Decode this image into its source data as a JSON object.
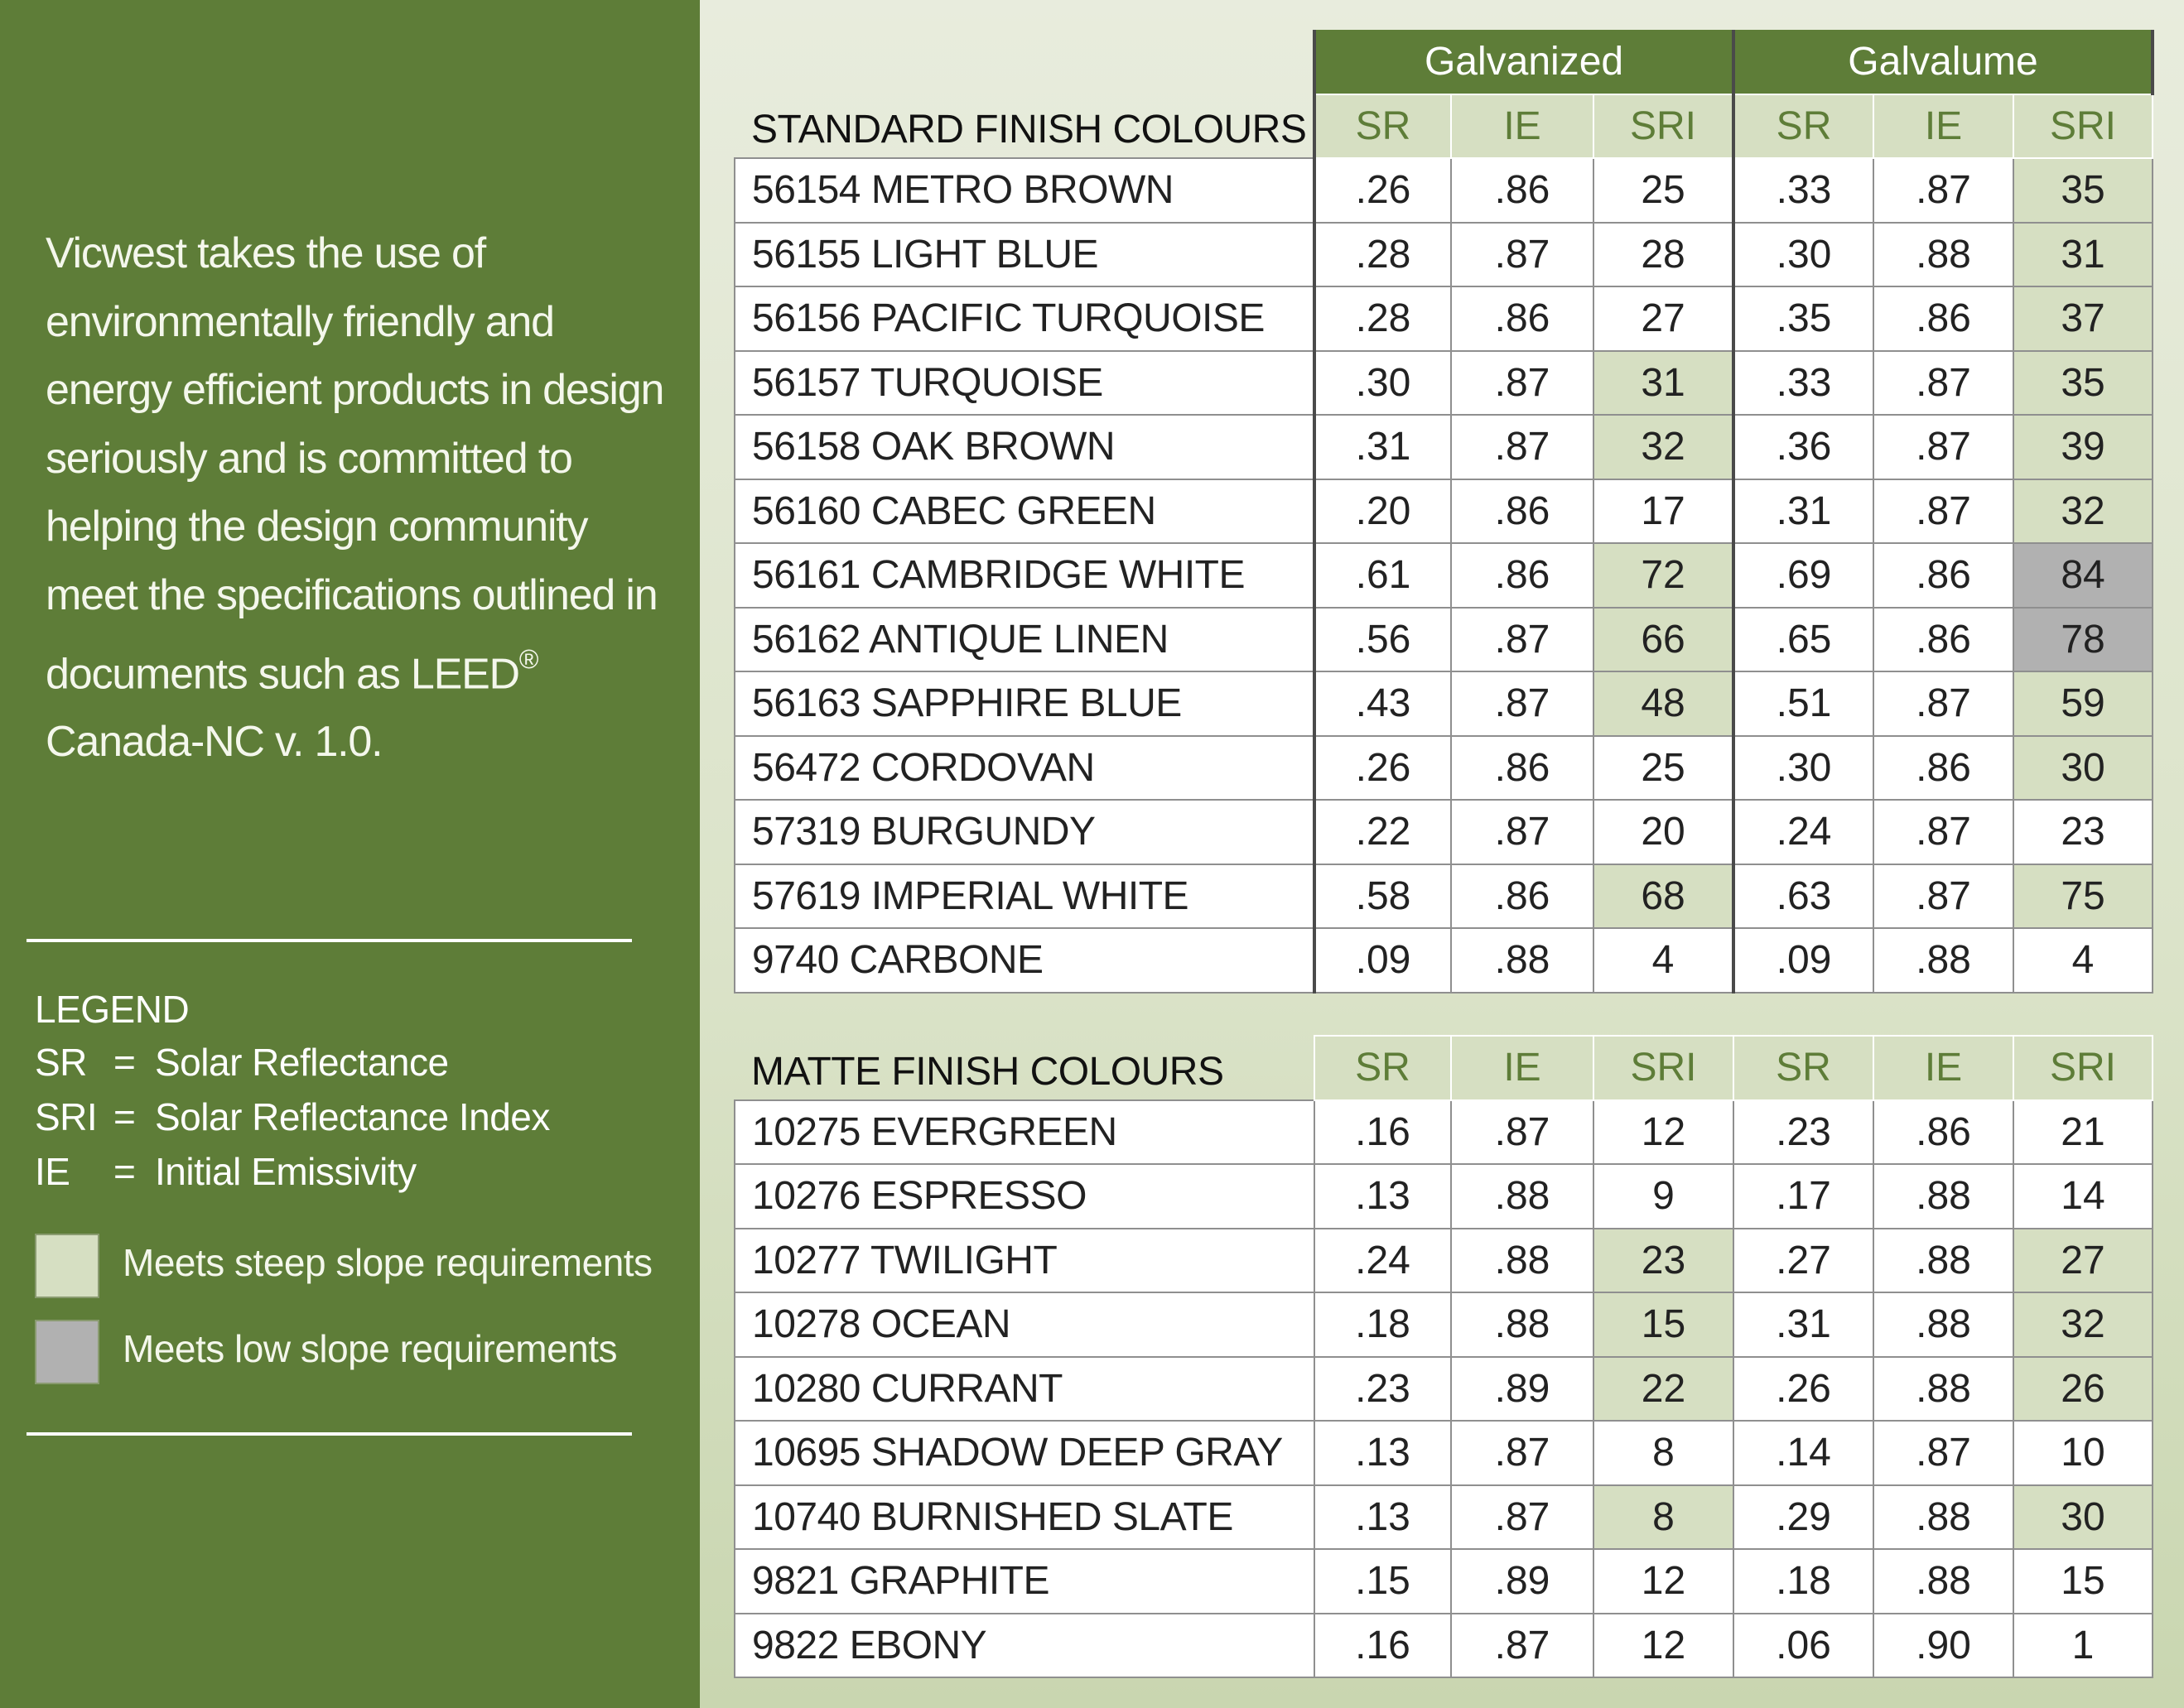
{
  "intro": {
    "text_main": "Vicwest takes the use of environmentally friendly and energy efficient products in design seriously and is committed to helping the design community meet the specifications outlined in documents such as LEED",
    "trademark": "®",
    "text_tail": "Canada-NC v. 1.0."
  },
  "legend": {
    "title": "LEGEND",
    "items": [
      {
        "abbr": "SR",
        "eq": "=",
        "desc": "Solar Reflectance"
      },
      {
        "abbr": "SRI",
        "eq": "=",
        "desc": "Solar Reflectance Index"
      },
      {
        "abbr": "IE",
        "eq": "=",
        "desc": "Initial Emissivity"
      }
    ],
    "swatches": [
      {
        "label": "Meets steep slope requirements",
        "color": "#d6dfc2"
      },
      {
        "label": "Meets low slope requirements",
        "color": "#b1b1b1"
      }
    ]
  },
  "colors": {
    "green": "#5e7d38",
    "steep": "#d6dfc2",
    "low": "#b1b1b1"
  },
  "groups": [
    "Galvanized",
    "Galvalume"
  ],
  "cols": [
    "SR",
    "IE",
    "SRI",
    "SR",
    "IE",
    "SRI"
  ],
  "standard": {
    "title": "STANDARD FINISH COLOURS",
    "rows": [
      {
        "name": "56154 METRO BROWN",
        "v": [
          ".26",
          ".86",
          "25",
          ".33",
          ".87",
          "35"
        ],
        "h": [
          "",
          "",
          "",
          "",
          "",
          "steep"
        ]
      },
      {
        "name": "56155 LIGHT BLUE",
        "v": [
          ".28",
          ".87",
          "28",
          ".30",
          ".88",
          "31"
        ],
        "h": [
          "",
          "",
          "",
          "",
          "",
          "steep"
        ]
      },
      {
        "name": "56156 PACIFIC TURQUOISE",
        "v": [
          ".28",
          ".86",
          "27",
          ".35",
          ".86",
          "37"
        ],
        "h": [
          "",
          "",
          "",
          "",
          "",
          "steep"
        ]
      },
      {
        "name": "56157 TURQUOISE",
        "v": [
          ".30",
          ".87",
          "31",
          ".33",
          ".87",
          "35"
        ],
        "h": [
          "",
          "",
          "steep",
          "",
          "",
          "steep"
        ]
      },
      {
        "name": "56158 OAK BROWN",
        "v": [
          ".31",
          ".87",
          "32",
          ".36",
          ".87",
          "39"
        ],
        "h": [
          "",
          "",
          "steep",
          "",
          "",
          "steep"
        ]
      },
      {
        "name": "56160 CABEC GREEN",
        "v": [
          ".20",
          ".86",
          "17",
          ".31",
          ".87",
          "32"
        ],
        "h": [
          "",
          "",
          "",
          "",
          "",
          "steep"
        ]
      },
      {
        "name": "56161 CAMBRIDGE WHITE",
        "v": [
          ".61",
          ".86",
          "72",
          ".69",
          ".86",
          "84"
        ],
        "h": [
          "",
          "",
          "steep",
          "",
          "",
          "low"
        ]
      },
      {
        "name": "56162 ANTIQUE LINEN",
        "v": [
          ".56",
          ".87",
          "66",
          ".65",
          ".86",
          "78"
        ],
        "h": [
          "",
          "",
          "steep",
          "",
          "",
          "low"
        ]
      },
      {
        "name": "56163 SAPPHIRE BLUE",
        "v": [
          ".43",
          ".87",
          "48",
          ".51",
          ".87",
          "59"
        ],
        "h": [
          "",
          "",
          "steep",
          "",
          "",
          "steep"
        ]
      },
      {
        "name": "56472 CORDOVAN",
        "v": [
          ".26",
          ".86",
          "25",
          ".30",
          ".86",
          "30"
        ],
        "h": [
          "",
          "",
          "",
          "",
          "",
          "steep"
        ]
      },
      {
        "name": "57319 BURGUNDY",
        "v": [
          ".22",
          ".87",
          "20",
          ".24",
          ".87",
          "23"
        ],
        "h": [
          "",
          "",
          "",
          "",
          "",
          ""
        ]
      },
      {
        "name": "57619 IMPERIAL WHITE",
        "v": [
          ".58",
          ".86",
          "68",
          ".63",
          ".87",
          "75"
        ],
        "h": [
          "",
          "",
          "steep",
          "",
          "",
          "steep"
        ]
      },
      {
        "name": "9740 CARBONE",
        "v": [
          ".09",
          ".88",
          "4",
          ".09",
          ".88",
          "4"
        ],
        "h": [
          "",
          "",
          "",
          "",
          "",
          ""
        ]
      }
    ]
  },
  "matte": {
    "title": "MATTE FINISH COLOURS",
    "rows": [
      {
        "name": "10275 EVERGREEN",
        "v": [
          ".16",
          ".87",
          "12",
          ".23",
          ".86",
          "21"
        ],
        "h": [
          "",
          "",
          "",
          "",
          "",
          ""
        ]
      },
      {
        "name": "10276 ESPRESSO",
        "v": [
          ".13",
          ".88",
          "9",
          ".17",
          ".88",
          "14"
        ],
        "h": [
          "",
          "",
          "",
          "",
          "",
          ""
        ]
      },
      {
        "name": "10277 TWILIGHT",
        "v": [
          ".24",
          ".88",
          "23",
          ".27",
          ".88",
          "27"
        ],
        "h": [
          "",
          "",
          "steep",
          "",
          "",
          "steep"
        ]
      },
      {
        "name": "10278 OCEAN",
        "v": [
          ".18",
          ".88",
          "15",
          ".31",
          ".88",
          "32"
        ],
        "h": [
          "",
          "",
          "steep",
          "",
          "",
          "steep"
        ]
      },
      {
        "name": "10280 CURRANT",
        "v": [
          ".23",
          ".89",
          "22",
          ".26",
          ".88",
          "26"
        ],
        "h": [
          "",
          "",
          "steep",
          "",
          "",
          "steep"
        ]
      },
      {
        "name": "10695 SHADOW DEEP GRAY",
        "v": [
          ".13",
          ".87",
          "8",
          ".14",
          ".87",
          "10"
        ],
        "h": [
          "",
          "",
          "",
          "",
          "",
          ""
        ]
      },
      {
        "name": "10740 BURNISHED SLATE",
        "v": [
          ".13",
          ".87",
          "8",
          ".29",
          ".88",
          "30"
        ],
        "h": [
          "",
          "",
          "steep",
          "",
          "",
          "steep"
        ]
      },
      {
        "name": "9821 GRAPHITE",
        "v": [
          ".15",
          ".89",
          "12",
          ".18",
          ".88",
          "15"
        ],
        "h": [
          "",
          "",
          "",
          "",
          "",
          ""
        ]
      },
      {
        "name": "9822 EBONY",
        "v": [
          ".16",
          ".87",
          "12",
          ".06",
          ".90",
          "1"
        ],
        "h": [
          "",
          "",
          "",
          "",
          "",
          ""
        ]
      }
    ]
  }
}
